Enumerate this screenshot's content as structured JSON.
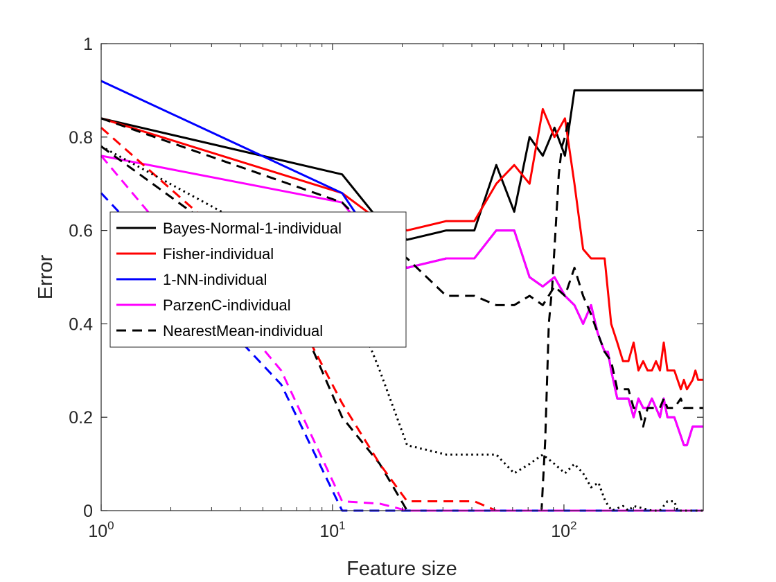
{
  "chart_data": {
    "type": "line",
    "title": "",
    "xlabel": "Feature size",
    "ylabel": "Error",
    "xscale": "log",
    "xlim": [
      1,
      400
    ],
    "ylim": [
      0,
      1
    ],
    "grid": false,
    "legend_position": "center-left",
    "x_ticks": [
      {
        "value": 1,
        "base": "10",
        "exp": "0"
      },
      {
        "value": 10,
        "base": "10",
        "exp": "1"
      },
      {
        "value": 100,
        "base": "10",
        "exp": "2"
      }
    ],
    "y_ticks": [
      {
        "value": 0,
        "label": "0"
      },
      {
        "value": 0.2,
        "label": "0.2"
      },
      {
        "value": 0.4,
        "label": "0.4"
      },
      {
        "value": 0.6,
        "label": "0.6"
      },
      {
        "value": 0.8,
        "label": "0.8"
      },
      {
        "value": 1,
        "label": "1"
      }
    ],
    "series": [
      {
        "name": "Bayes-Normal-1-individual",
        "color": "#000000",
        "dash": "solid",
        "in_legend": true,
        "points": [
          [
            1,
            0.84
          ],
          [
            11,
            0.72
          ],
          [
            16,
            0.62
          ],
          [
            21,
            0.58
          ],
          [
            31,
            0.6
          ],
          [
            41,
            0.6
          ],
          [
            51,
            0.74
          ],
          [
            61,
            0.64
          ],
          [
            71,
            0.8
          ],
          [
            81,
            0.76
          ],
          [
            91,
            0.82
          ],
          [
            101,
            0.76
          ],
          [
            111,
            0.9
          ],
          [
            400,
            0.9
          ]
        ]
      },
      {
        "name": "Fisher-individual",
        "color": "#ff0000",
        "dash": "solid",
        "in_legend": true,
        "points": [
          [
            1,
            0.84
          ],
          [
            11,
            0.68
          ],
          [
            16,
            0.62
          ],
          [
            21,
            0.6
          ],
          [
            31,
            0.62
          ],
          [
            41,
            0.62
          ],
          [
            51,
            0.7
          ],
          [
            61,
            0.74
          ],
          [
            71,
            0.7
          ],
          [
            81,
            0.86
          ],
          [
            91,
            0.8
          ],
          [
            101,
            0.84
          ],
          [
            111,
            0.7
          ],
          [
            121,
            0.56
          ],
          [
            131,
            0.54
          ],
          [
            150,
            0.54
          ],
          [
            160,
            0.4
          ],
          [
            170,
            0.36
          ],
          [
            180,
            0.32
          ],
          [
            190,
            0.32
          ],
          [
            200,
            0.36
          ],
          [
            210,
            0.3
          ],
          [
            220,
            0.32
          ],
          [
            230,
            0.3
          ],
          [
            240,
            0.3
          ],
          [
            250,
            0.32
          ],
          [
            260,
            0.3
          ],
          [
            270,
            0.36
          ],
          [
            280,
            0.3
          ],
          [
            300,
            0.3
          ],
          [
            320,
            0.26
          ],
          [
            330,
            0.28
          ],
          [
            340,
            0.26
          ],
          [
            360,
            0.28
          ],
          [
            370,
            0.3
          ],
          [
            380,
            0.28
          ],
          [
            400,
            0.28
          ]
        ]
      },
      {
        "name": "1-NN-individual",
        "color": "#0000ff",
        "dash": "solid",
        "in_legend": true,
        "points": [
          [
            1,
            0.92
          ],
          [
            11,
            0.68
          ],
          [
            16,
            0.56
          ],
          [
            21,
            0.52
          ],
          [
            31,
            0.54
          ],
          [
            41,
            0.54
          ],
          [
            51,
            0.6
          ],
          [
            61,
            0.6
          ],
          [
            71,
            0.5
          ],
          [
            81,
            0.48
          ],
          [
            91,
            0.5
          ],
          [
            101,
            0.46
          ],
          [
            111,
            0.44
          ],
          [
            121,
            0.4
          ],
          [
            131,
            0.44
          ],
          [
            140,
            0.38
          ],
          [
            150,
            0.34
          ],
          [
            155,
            0.34
          ],
          [
            160,
            0.3
          ],
          [
            170,
            0.24
          ],
          [
            180,
            0.24
          ],
          [
            190,
            0.24
          ],
          [
            200,
            0.2
          ],
          [
            210,
            0.24
          ],
          [
            220,
            0.22
          ],
          [
            230,
            0.22
          ],
          [
            240,
            0.24
          ],
          [
            250,
            0.22
          ],
          [
            260,
            0.2
          ],
          [
            270,
            0.24
          ],
          [
            280,
            0.2
          ],
          [
            300,
            0.2
          ],
          [
            320,
            0.16
          ],
          [
            330,
            0.14
          ],
          [
            340,
            0.14
          ],
          [
            360,
            0.18
          ],
          [
            400,
            0.18
          ]
        ]
      },
      {
        "name": "ParzenC-individual",
        "color": "#ff00ff",
        "dash": "solid",
        "in_legend": true,
        "points": [
          [
            1,
            0.76
          ],
          [
            11,
            0.66
          ],
          [
            16,
            0.56
          ],
          [
            21,
            0.52
          ],
          [
            31,
            0.54
          ],
          [
            41,
            0.54
          ],
          [
            51,
            0.6
          ],
          [
            61,
            0.6
          ],
          [
            71,
            0.5
          ],
          [
            81,
            0.48
          ],
          [
            91,
            0.5
          ],
          [
            101,
            0.46
          ],
          [
            111,
            0.44
          ],
          [
            121,
            0.4
          ],
          [
            131,
            0.44
          ],
          [
            140,
            0.38
          ],
          [
            150,
            0.34
          ],
          [
            155,
            0.34
          ],
          [
            160,
            0.3
          ],
          [
            170,
            0.24
          ],
          [
            180,
            0.24
          ],
          [
            190,
            0.24
          ],
          [
            200,
            0.2
          ],
          [
            210,
            0.24
          ],
          [
            220,
            0.22
          ],
          [
            230,
            0.22
          ],
          [
            240,
            0.24
          ],
          [
            250,
            0.22
          ],
          [
            260,
            0.2
          ],
          [
            270,
            0.24
          ],
          [
            280,
            0.2
          ],
          [
            300,
            0.2
          ],
          [
            320,
            0.16
          ],
          [
            330,
            0.14
          ],
          [
            340,
            0.14
          ],
          [
            360,
            0.18
          ],
          [
            400,
            0.18
          ]
        ]
      },
      {
        "name": "NearestMean-individual",
        "color": "#000000",
        "dash": "dashed",
        "in_legend": true,
        "points": [
          [
            1,
            0.84
          ],
          [
            11,
            0.66
          ],
          [
            16,
            0.58
          ],
          [
            21,
            0.54
          ],
          [
            31,
            0.46
          ],
          [
            41,
            0.46
          ],
          [
            51,
            0.44
          ],
          [
            61,
            0.44
          ],
          [
            71,
            0.46
          ],
          [
            81,
            0.44
          ],
          [
            91,
            0.48
          ],
          [
            101,
            0.46
          ],
          [
            111,
            0.52
          ],
          [
            121,
            0.46
          ],
          [
            131,
            0.42
          ],
          [
            140,
            0.38
          ],
          [
            150,
            0.34
          ],
          [
            160,
            0.32
          ],
          [
            170,
            0.26
          ],
          [
            190,
            0.26
          ],
          [
            200,
            0.22
          ],
          [
            210,
            0.22
          ],
          [
            220,
            0.18
          ],
          [
            230,
            0.22
          ],
          [
            260,
            0.22
          ],
          [
            270,
            0.24
          ],
          [
            280,
            0.22
          ],
          [
            300,
            0.22
          ],
          [
            320,
            0.24
          ],
          [
            330,
            0.22
          ],
          [
            400,
            0.22
          ]
        ]
      },
      {
        "name": "",
        "color": "#000000",
        "dash": "dashed",
        "in_legend": false,
        "points": [
          [
            1,
            0.78
          ],
          [
            6,
            0.5
          ],
          [
            11,
            0.2
          ],
          [
            16,
            0.1
          ],
          [
            21,
            0
          ],
          [
            80,
            0
          ],
          [
            83,
            0.15
          ],
          [
            86,
            0.4
          ],
          [
            89,
            0.48
          ],
          [
            92,
            0.6
          ],
          [
            95,
            0.72
          ],
          [
            98,
            0.78
          ],
          [
            101,
            0.8
          ],
          [
            105,
            0.84
          ]
        ]
      },
      {
        "name": "",
        "color": "#ff0000",
        "dash": "dashed",
        "in_legend": false,
        "points": [
          [
            1,
            0.82
          ],
          [
            6,
            0.48
          ],
          [
            11,
            0.23
          ],
          [
            16,
            0.1
          ],
          [
            21,
            0.02
          ],
          [
            41,
            0.02
          ],
          [
            51,
            0
          ],
          [
            400,
            0
          ]
        ]
      },
      {
        "name": "",
        "color": "#0000ff",
        "dash": "dashed",
        "in_legend": false,
        "points": [
          [
            1,
            0.68
          ],
          [
            6,
            0.27
          ],
          [
            11,
            0
          ],
          [
            400,
            0
          ]
        ]
      },
      {
        "name": "",
        "color": "#ff00ff",
        "dash": "dashed",
        "in_legend": false,
        "points": [
          [
            1,
            0.76
          ],
          [
            6,
            0.3
          ],
          [
            11,
            0.02
          ],
          [
            16,
            0.015
          ],
          [
            21,
            0
          ],
          [
            400,
            0
          ]
        ]
      },
      {
        "name": "",
        "color": "#000000",
        "dash": "dotted",
        "in_legend": false,
        "points": [
          [
            1,
            0.78
          ],
          [
            11,
            0.5
          ],
          [
            16,
            0.3
          ],
          [
            21,
            0.14
          ],
          [
            31,
            0.12
          ],
          [
            41,
            0.12
          ],
          [
            51,
            0.12
          ],
          [
            61,
            0.08
          ],
          [
            71,
            0.1
          ],
          [
            81,
            0.12
          ],
          [
            91,
            0.1
          ],
          [
            101,
            0.08
          ],
          [
            111,
            0.1
          ],
          [
            121,
            0.08
          ],
          [
            131,
            0.05
          ],
          [
            141,
            0.06
          ],
          [
            151,
            0.02
          ],
          [
            161,
            0
          ],
          [
            180,
            0.01
          ],
          [
            190,
            0
          ],
          [
            200,
            0.01
          ],
          [
            240,
            0
          ],
          [
            260,
            0
          ],
          [
            280,
            0.02
          ],
          [
            300,
            0.02
          ],
          [
            310,
            0
          ],
          [
            400,
            0
          ]
        ]
      }
    ]
  }
}
